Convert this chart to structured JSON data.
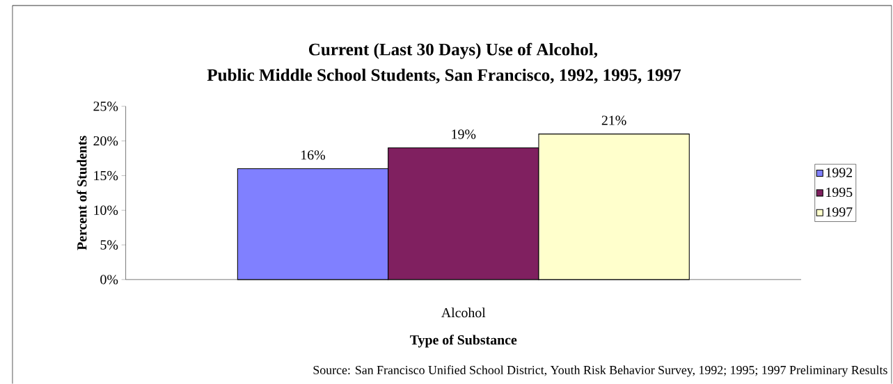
{
  "chart_data": {
    "type": "bar",
    "title": "Current (Last 30 Days) Use of Alcohol,",
    "subtitle": "Public Middle School Students, San Francisco, 1992, 1995, 1997",
    "xlabel": "Type of Substance",
    "ylabel": "Percent of Students",
    "categories": [
      "Alcohol"
    ],
    "series": [
      {
        "name": "1992",
        "color": "#8080ff",
        "values": [
          16
        ],
        "value_labels": [
          "16%"
        ]
      },
      {
        "name": "1995",
        "color": "#802060",
        "values": [
          19
        ],
        "value_labels": [
          "19%"
        ]
      },
      {
        "name": "1997",
        "color": "#ffffcc",
        "values": [
          21
        ],
        "value_labels": [
          "21%"
        ]
      }
    ],
    "ylim": [
      0,
      25
    ],
    "yticks": [
      {
        "value": 0,
        "label": "0%"
      },
      {
        "value": 5,
        "label": "5%"
      },
      {
        "value": 10,
        "label": "10%"
      },
      {
        "value": 15,
        "label": "15%"
      },
      {
        "value": 20,
        "label": "20%"
      },
      {
        "value": 25,
        "label": "25%"
      }
    ],
    "legend": "right",
    "annotations": [
      "Source:  San Francisco Unified School District, Youth Risk Behavior Survey, 1992; 1995; 1997 Preliminary Results"
    ]
  }
}
